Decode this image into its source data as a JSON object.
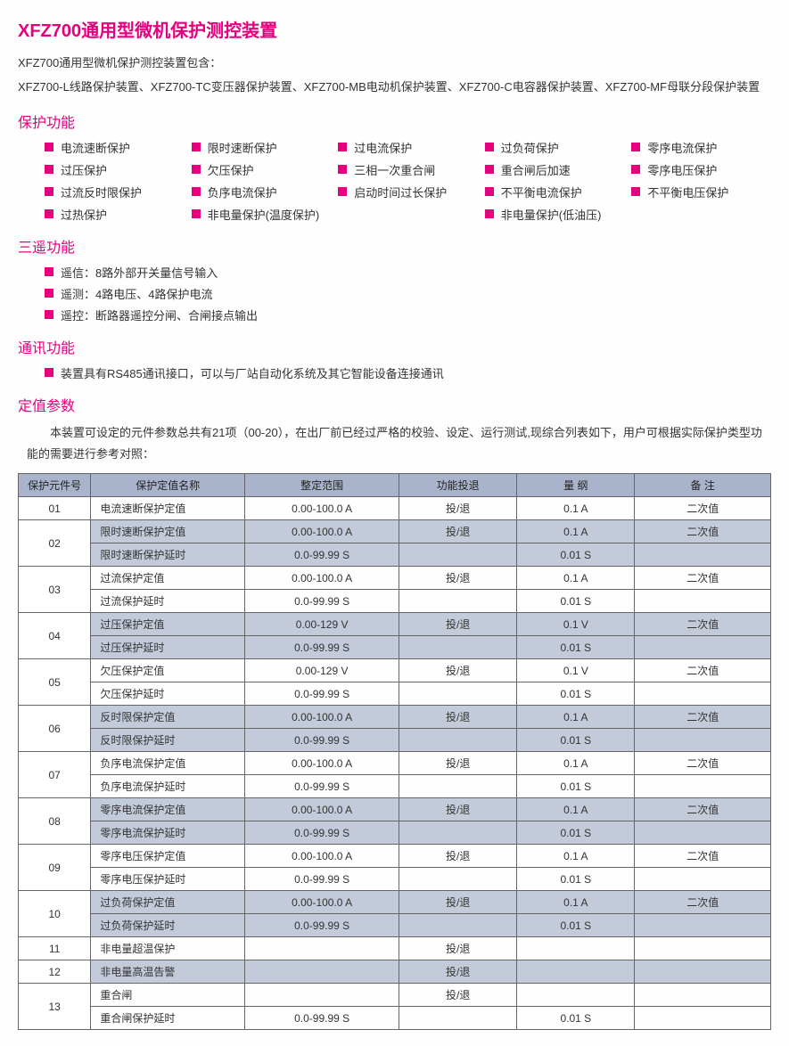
{
  "title": "XFZ700通用型微机保护测控装置",
  "intro1": "XFZ700通用型微机保护测控装置包含：",
  "intro2": "XFZ700-L线路保护装置、XFZ700-TC变压器保护装置、XFZ700-MB电动机保护装置、XFZ700-C电容器保护装置、XFZ700-MF母联分段保护装置",
  "sec_protect": "保护功能",
  "protect_items": [
    "电流速断保护",
    "限时速断保护",
    "过电流保护",
    "过负荷保护",
    "零序电流保护",
    "过压保护",
    "欠压保护",
    "三相一次重合闸",
    "重合闸后加速",
    "零序电压保护",
    "过流反时限保护",
    "负序电流保护",
    "启动时间过长保护",
    "不平衡电流保护",
    "不平衡电压保护",
    "过热保护",
    "非电量保护(温度保护)",
    "",
    "非电量保护(低油压)",
    ""
  ],
  "sec_sanyao": "三遥功能",
  "sanyao_items": [
    "遥信：8路外部开关量信号输入",
    "遥测：4路电压、4路保护电流",
    "遥控：断路器遥控分闸、合闸接点输出"
  ],
  "sec_comm": "通讯功能",
  "comm_item": "装置具有RS485通讯接口，可以与厂站自动化系统及其它智能设备连接通讯",
  "sec_param": "定值参数",
  "param_intro": "本装置可设定的元件参数总共有21项（00-20），在出厂前已经过严格的校验、设定、运行测试,现综合列表如下，用户可根据实际保护类型功能的需要进行参考对照：",
  "table": {
    "headers": [
      "保护元件号",
      "保护定值名称",
      "整定范围",
      "功能投退",
      "量    纲",
      "备    注"
    ],
    "rows": [
      {
        "id": "01",
        "shade": false,
        "cells": [
          "电流速断保护定值",
          "0.00-100.0 A",
          "投/退",
          "0.1 A",
          "二次值"
        ]
      },
      {
        "id": "02",
        "span": 2,
        "shade": true,
        "cells": [
          "限时速断保护定值",
          "0.00-100.0 A",
          "投/退",
          "0.1 A",
          "二次值"
        ]
      },
      {
        "shade": true,
        "cells": [
          "限时速断保护延时",
          "0.0-99.99 S",
          "",
          "0.01 S",
          ""
        ]
      },
      {
        "id": "03",
        "span": 2,
        "shade": false,
        "cells": [
          "过流保护定值",
          "0.00-100.0 A",
          "投/退",
          "0.1 A",
          "二次值"
        ]
      },
      {
        "shade": false,
        "cells": [
          "过流保护延时",
          "0.0-99.99 S",
          "",
          "0.01 S",
          ""
        ]
      },
      {
        "id": "04",
        "span": 2,
        "shade": true,
        "cells": [
          "过压保护定值",
          "0.00-129 V",
          "投/退",
          "0.1 V",
          "二次值"
        ]
      },
      {
        "shade": true,
        "cells": [
          "过压保护延时",
          "0.0-99.99 S",
          "",
          "0.01 S",
          ""
        ]
      },
      {
        "id": "05",
        "span": 2,
        "shade": false,
        "cells": [
          "欠压保护定值",
          "0.00-129 V",
          "投/退",
          "0.1 V",
          "二次值"
        ]
      },
      {
        "shade": false,
        "cells": [
          "欠压保护延时",
          "0.0-99.99 S",
          "",
          "0.01 S",
          ""
        ]
      },
      {
        "id": "06",
        "span": 2,
        "shade": true,
        "cells": [
          "反时限保护定值",
          "0.00-100.0 A",
          "投/退",
          "0.1 A",
          "二次值"
        ]
      },
      {
        "shade": true,
        "cells": [
          "反时限保护延时",
          "0.0-99.99 S",
          "",
          "0.01 S",
          ""
        ]
      },
      {
        "id": "07",
        "span": 2,
        "shade": false,
        "cells": [
          "负序电流保护定值",
          "0.00-100.0 A",
          "投/退",
          "0.1 A",
          "二次值"
        ]
      },
      {
        "shade": false,
        "cells": [
          "负序电流保护延时",
          "0.0-99.99 S",
          "",
          "0.01 S",
          ""
        ]
      },
      {
        "id": "08",
        "span": 2,
        "shade": true,
        "cells": [
          "零序电流保护定值",
          "0.00-100.0 A",
          "投/退",
          "0.1 A",
          "二次值"
        ]
      },
      {
        "shade": true,
        "cells": [
          "零序电流保护延时",
          "0.0-99.99 S",
          "",
          "0.01 S",
          ""
        ]
      },
      {
        "id": "09",
        "span": 2,
        "shade": false,
        "cells": [
          "零序电压保护定值",
          "0.00-100.0 A",
          "投/退",
          "0.1 A",
          "二次值"
        ]
      },
      {
        "shade": false,
        "cells": [
          "零序电压保护延时",
          "0.0-99.99 S",
          "",
          "0.01 S",
          ""
        ]
      },
      {
        "id": "10",
        "span": 2,
        "shade": true,
        "cells": [
          "过负荷保护定值",
          "0.00-100.0 A",
          "投/退",
          "0.1 A",
          "二次值"
        ]
      },
      {
        "shade": true,
        "cells": [
          "过负荷保护延时",
          "0.0-99.99 S",
          "",
          "0.01 S",
          ""
        ]
      },
      {
        "id": "11",
        "shade": false,
        "cells": [
          "非电量超温保护",
          "",
          "投/退",
          "",
          ""
        ]
      },
      {
        "id": "12",
        "shade": true,
        "cells": [
          "非电量高温告警",
          "",
          "投/退",
          "",
          ""
        ]
      },
      {
        "id": "13",
        "span": 2,
        "shade": false,
        "cells": [
          "重合闸",
          "",
          "投/退",
          "",
          ""
        ]
      },
      {
        "shade": false,
        "cells": [
          "重合闸保护延时",
          "0.0-99.99 S",
          "",
          "0.01 S",
          ""
        ]
      }
    ],
    "col_widths": [
      "80px",
      "170px",
      "170px",
      "130px",
      "130px",
      "150px"
    ]
  },
  "colors": {
    "accent": "#e6007e",
    "thbg": "#a9b4cc",
    "shade": "#c3cad9",
    "border": "#666"
  }
}
